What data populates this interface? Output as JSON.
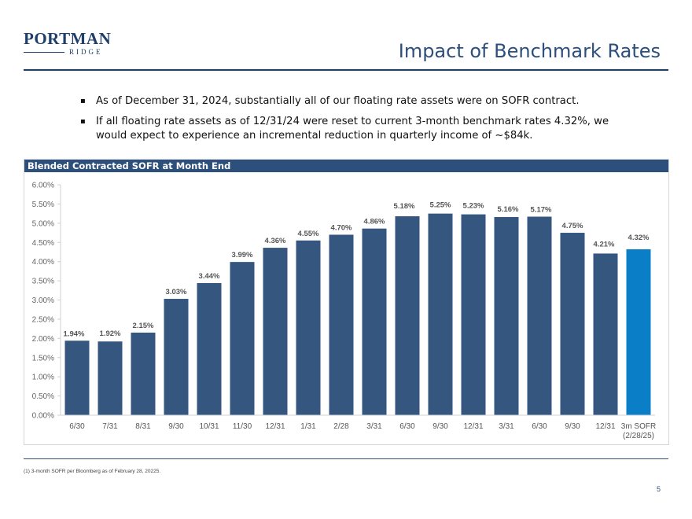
{
  "logo": {
    "name": "PORTMAN",
    "sub": "RIDGE"
  },
  "page_title": "Impact of Benchmark Rates",
  "bullets": [
    "As of December 31, 2024, substantially all of our floating rate assets were on SOFR contract.",
    "If all floating rate assets as of 12/31/24 were reset to current 3-month benchmark rates 4.32%, we would expect to experience an incremental reduction in quarterly income of ~$84k."
  ],
  "bullet_symbol": "▪",
  "chart_header": "Blended Contracted SOFR at Month End",
  "colors": {
    "primary_bar": "#34567f",
    "highlight_bar": "#0a7fc7",
    "brand": "#1f3f6a"
  },
  "chart_data": {
    "type": "bar",
    "categories": [
      "6/30",
      "7/31",
      "8/31",
      "9/30",
      "10/31",
      "11/30",
      "12/31",
      "1/31",
      "2/28",
      "3/31",
      "6/30",
      "9/30",
      "12/31",
      "3/31",
      "6/30",
      "9/30",
      "12/31",
      "3m SOFR\n(2/28/25)"
    ],
    "values": [
      1.94,
      1.92,
      2.15,
      3.03,
      3.44,
      3.99,
      4.36,
      4.55,
      4.7,
      4.86,
      5.18,
      5.25,
      5.23,
      5.16,
      5.17,
      4.75,
      4.21,
      4.32
    ],
    "data_labels": [
      "1.94%",
      "1.92%",
      "2.15%",
      "3.03%",
      "3.44%",
      "3.99%",
      "4.36%",
      "4.55%",
      "4.70%",
      "4.86%",
      "5.18%",
      "5.25%",
      "5.23%",
      "5.16%",
      "5.17%",
      "4.75%",
      "4.21%",
      "4.32%"
    ],
    "highlight_index": 17,
    "y_ticks": [
      "0.00%",
      "0.50%",
      "1.00%",
      "1.50%",
      "2.00%",
      "2.50%",
      "3.00%",
      "3.50%",
      "4.00%",
      "4.50%",
      "5.00%",
      "5.50%",
      "6.00%"
    ],
    "ylim": [
      0,
      6
    ],
    "grid": false,
    "title": "Blended Contracted SOFR at Month End"
  },
  "footnote": "(1)    3-month SOFR per Bloomberg as of February 28, 20225.",
  "page_number": "5"
}
